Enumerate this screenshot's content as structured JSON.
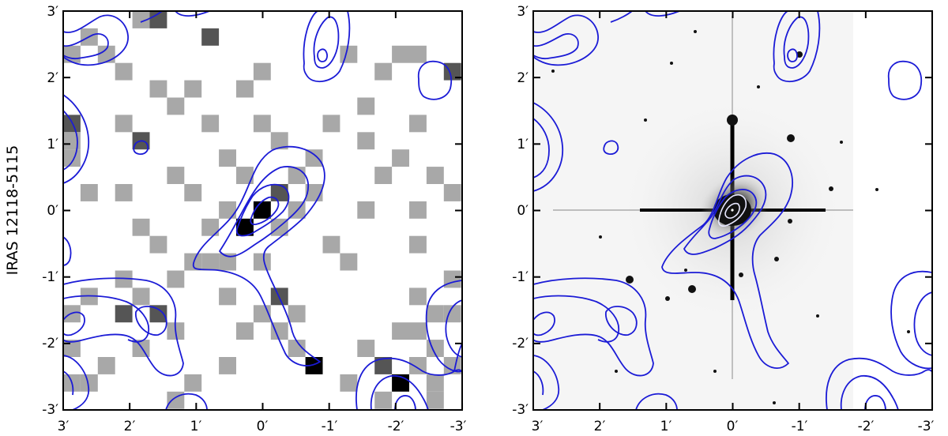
{
  "figure": {
    "row_label": "IRAS 12118-5115",
    "panels": [
      {
        "name": "xray-counts",
        "x_tick_labels": [
          "3′",
          "2′",
          "1′",
          "0′",
          "-1′",
          "-2′",
          "-3′"
        ],
        "y_tick_labels": [
          "3′",
          "2′",
          "1′",
          "0′",
          "-1′",
          "-2′",
          "-3′"
        ]
      },
      {
        "name": "optical-image",
        "x_tick_labels": [
          "3′",
          "2′",
          "1′",
          "0′",
          "-1′",
          "-2′",
          "-3′"
        ],
        "y_tick_labels": [
          "3′",
          "2′",
          "1′",
          "0′",
          "-1′",
          "-2′",
          "-3′"
        ]
      }
    ],
    "colors": {
      "contour": "#1b1bd6",
      "pixel_light": "#a8a8a8",
      "pixel_dark": "#555555",
      "pixel_black": "#000000"
    }
  }
}
